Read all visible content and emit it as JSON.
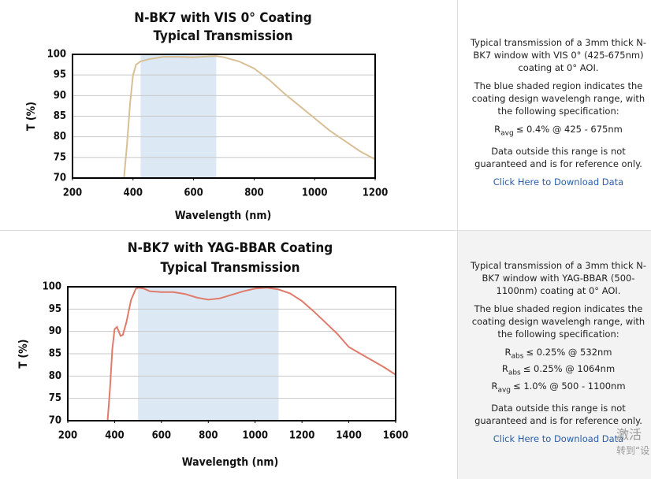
{
  "chart_data": [
    {
      "type": "line",
      "title": "N-BK7 with VIS 0° Coating",
      "subtitle": "Typical Transmission",
      "xlabel": "Wavelength (nm)",
      "ylabel": "T (%)",
      "xlim": [
        200,
        1200
      ],
      "xticks": [
        200,
        400,
        600,
        800,
        1000,
        1200
      ],
      "ylim": [
        70,
        100
      ],
      "yticks": [
        70,
        75,
        80,
        85,
        90,
        95,
        100
      ],
      "grid": true,
      "shaded_range": [
        425,
        675
      ],
      "shade_color": "#dce8f4",
      "color": "#d8bf95",
      "x": [
        370,
        380,
        390,
        400,
        410,
        425,
        450,
        500,
        550,
        600,
        650,
        675,
        700,
        750,
        800,
        850,
        900,
        950,
        1000,
        1050,
        1100,
        1150,
        1200
      ],
      "values": [
        70,
        78,
        88,
        95,
        97.5,
        98.3,
        98.8,
        99.4,
        99.4,
        99.3,
        99.5,
        99.6,
        99.3,
        98.3,
        96.6,
        93.8,
        90.5,
        87.5,
        84.5,
        81.5,
        79,
        76.5,
        74.5
      ]
    },
    {
      "type": "line",
      "title": "N-BK7 with YAG-BBAR Coating",
      "subtitle": "Typical Transmission",
      "xlabel": "Wavelength (nm)",
      "ylabel": "T (%)",
      "xlim": [
        200,
        1600
      ],
      "xticks": [
        200,
        400,
        600,
        800,
        1000,
        1200,
        1400,
        1600
      ],
      "ylim": [
        70,
        100
      ],
      "yticks": [
        70,
        75,
        80,
        85,
        90,
        95,
        100
      ],
      "grid": true,
      "shaded_range": [
        500,
        1100
      ],
      "shade_color": "#dce8f4",
      "color": "#e07a6a",
      "x": [
        370,
        380,
        390,
        400,
        410,
        425,
        435,
        450,
        470,
        490,
        500,
        525,
        550,
        600,
        650,
        700,
        750,
        800,
        850,
        900,
        950,
        1000,
        1050,
        1100,
        1150,
        1200,
        1250,
        1300,
        1350,
        1400,
        1450,
        1500,
        1550,
        1600
      ],
      "values": [
        70,
        77,
        86,
        90.5,
        91,
        89,
        89.2,
        92,
        97,
        99.5,
        99.8,
        99.6,
        99,
        98.8,
        98.8,
        98.4,
        97.6,
        97.1,
        97.4,
        98.2,
        99,
        99.6,
        99.8,
        99.4,
        98.5,
        96.8,
        94.5,
        92,
        89.5,
        86.5,
        85,
        83.5,
        82,
        80.3
      ]
    }
  ],
  "panels": [
    {
      "description": "Typical transmission of a 3mm thick N-BK7 window with VIS 0° (425-675nm) coating at 0° AOI.",
      "note": "The blue shaded region indicates the coating design wavelengh range, with the following specification:",
      "specs": [
        {
          "symbol": "R",
          "sub": "avg",
          "text": "≤ 0.4% @ 425 - 675nm"
        }
      ],
      "disclaimer": "Data outside this range is not guaranteed and is for reference only.",
      "link": "Click Here to Download Data"
    },
    {
      "description": "Typical transmission of a 3mm thick N-BK7 window with YAG-BBAR (500-1100nm) coating at 0° AOI.",
      "note": "The blue shaded region indicates the coating design wavelengh range, with the following specification:",
      "specs": [
        {
          "symbol": "R",
          "sub": "abs",
          "text": "≤ 0.25% @ 532nm"
        },
        {
          "symbol": "R",
          "sub": "abs",
          "text": "≤ 0.25% @ 1064nm"
        },
        {
          "symbol": "R",
          "sub": "avg",
          "text": "≤ 1.0% @ 500 - 1100nm"
        }
      ],
      "disclaimer": "Data outside this range is not guaranteed and is for reference only.",
      "link": "Click Here to Download Data"
    }
  ],
  "watermark": [
    "激活",
    "转到“设"
  ]
}
